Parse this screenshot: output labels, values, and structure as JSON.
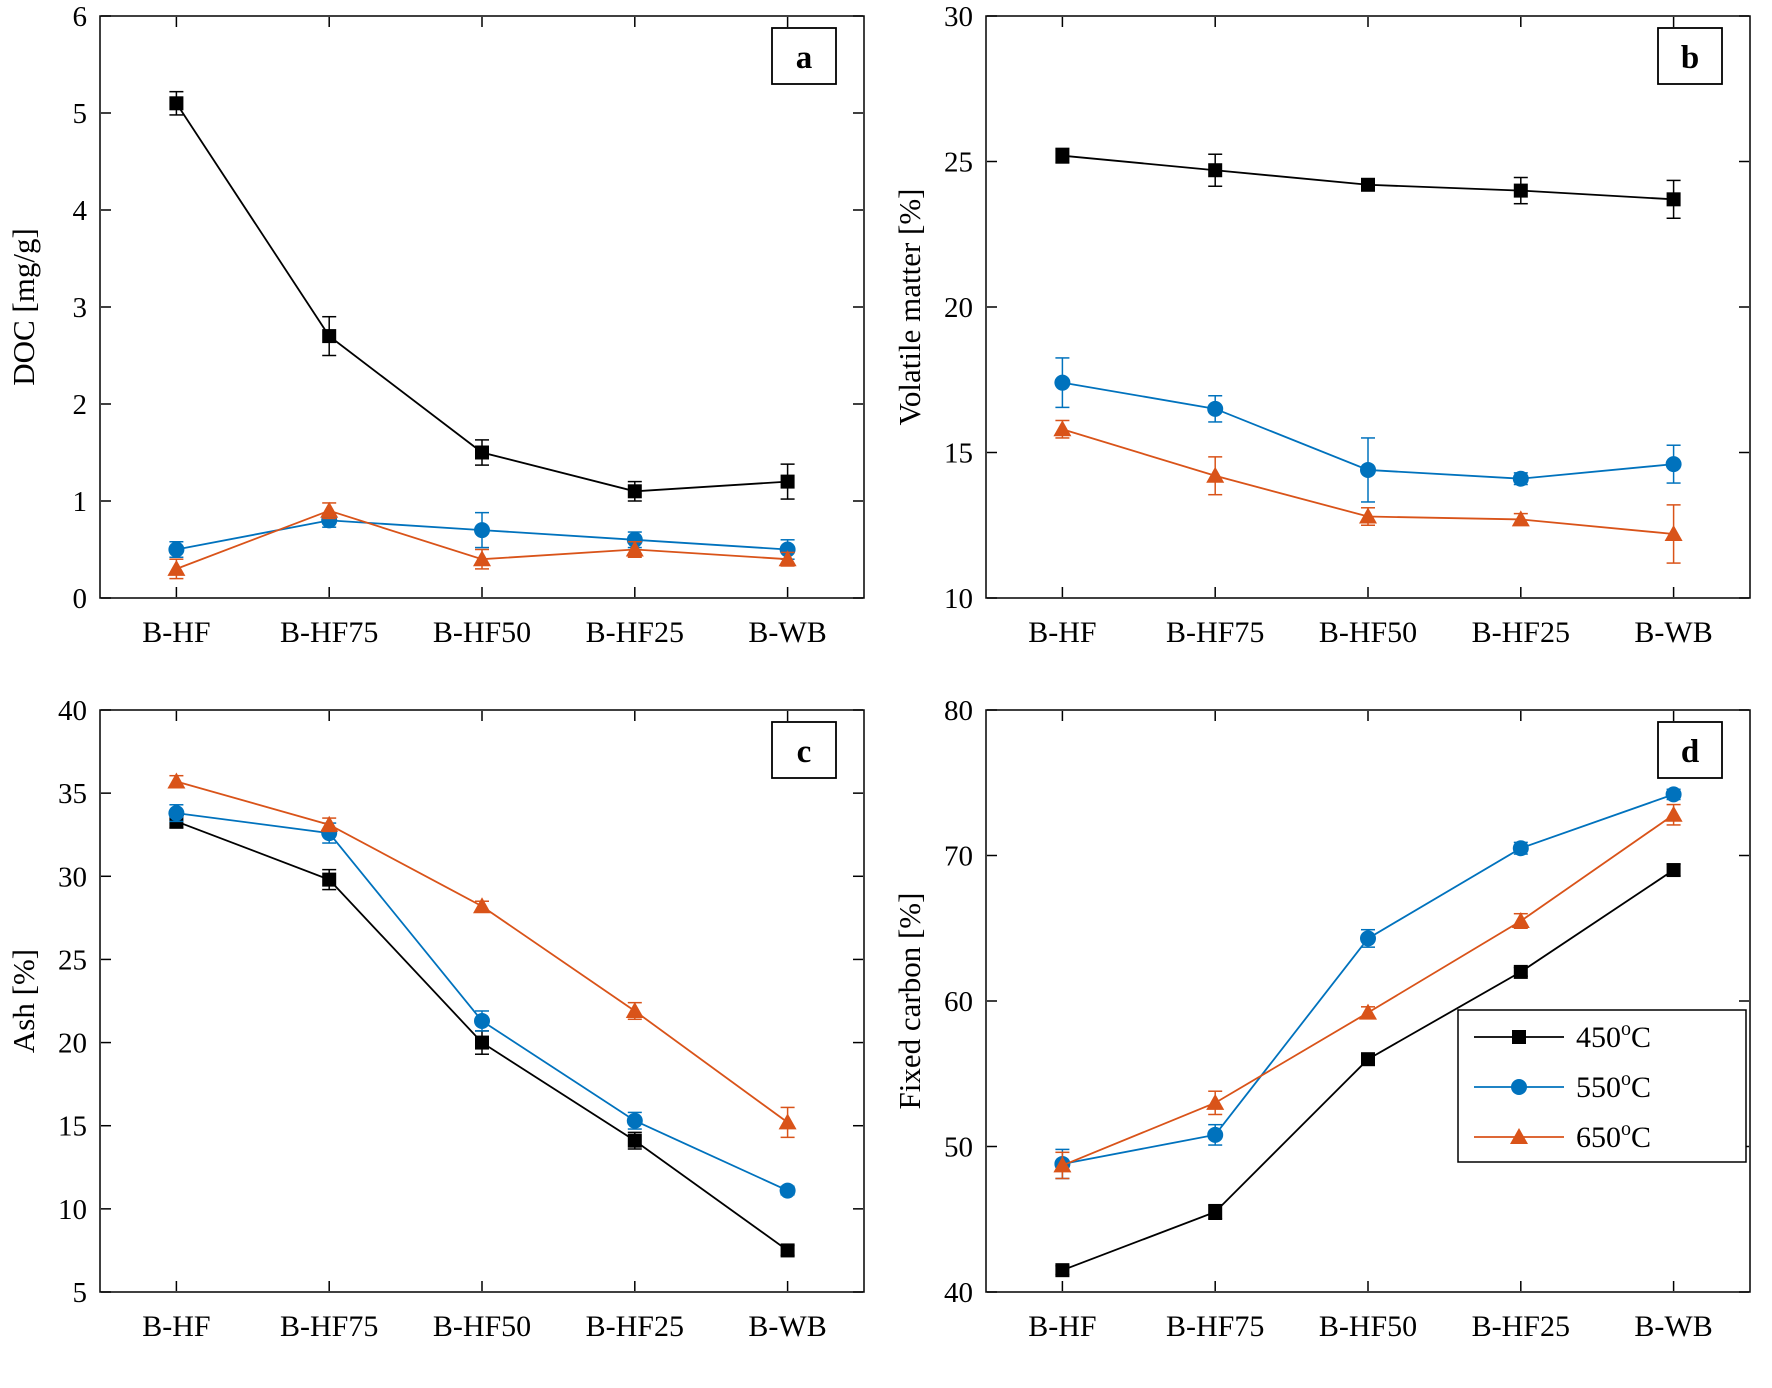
{
  "figure": {
    "background": "#ffffff",
    "panels": [
      "a",
      "b",
      "c",
      "d"
    ]
  },
  "legend": {
    "position": "inside-right-panel-d",
    "entries": [
      {
        "base": "450",
        "sup": "o",
        "suffix": "C"
      },
      {
        "base": "550",
        "sup": "o",
        "suffix": "C"
      },
      {
        "base": "650",
        "sup": "o",
        "suffix": "C"
      }
    ]
  },
  "chart_data": [
    {
      "panel": "a",
      "type": "line",
      "ylabel": "DOC [mg/g]",
      "ylim": [
        0,
        6
      ],
      "yticks": [
        0,
        1,
        2,
        3,
        4,
        5,
        6
      ],
      "categories": [
        "B-HF",
        "B-HF75",
        "B-HF50",
        "B-HF25",
        "B-WB"
      ],
      "legend": false,
      "series": [
        {
          "name": "450°C",
          "marker": "square",
          "color": "#000000",
          "values": [
            5.1,
            2.7,
            1.5,
            1.1,
            1.2
          ],
          "errors": [
            0.12,
            0.2,
            0.13,
            0.1,
            0.18
          ]
        },
        {
          "name": "550°C",
          "marker": "circle",
          "color": "#0072BD",
          "values": [
            0.5,
            0.8,
            0.7,
            0.6,
            0.5
          ],
          "errors": [
            0.08,
            0.07,
            0.18,
            0.08,
            0.1
          ]
        },
        {
          "name": "650°C",
          "marker": "triangle",
          "color": "#D95319",
          "values": [
            0.3,
            0.9,
            0.4,
            0.5,
            0.4
          ],
          "errors": [
            0.1,
            0.08,
            0.1,
            0.08,
            0.07
          ]
        }
      ]
    },
    {
      "panel": "b",
      "type": "line",
      "ylabel": "Volatile matter [%]",
      "ylim": [
        10,
        30
      ],
      "yticks": [
        10,
        15,
        20,
        25,
        30
      ],
      "categories": [
        "B-HF",
        "B-HF75",
        "B-HF50",
        "B-HF25",
        "B-WB"
      ],
      "legend": false,
      "series": [
        {
          "name": "450°C",
          "marker": "square",
          "color": "#000000",
          "values": [
            25.2,
            24.7,
            24.2,
            24.0,
            23.7
          ],
          "errors": [
            0.25,
            0.55,
            0.2,
            0.45,
            0.65
          ]
        },
        {
          "name": "550°C",
          "marker": "circle",
          "color": "#0072BD",
          "values": [
            17.4,
            16.5,
            14.4,
            14.1,
            14.6
          ],
          "errors": [
            0.85,
            0.45,
            1.1,
            0.2,
            0.65
          ]
        },
        {
          "name": "650°C",
          "marker": "triangle",
          "color": "#D95319",
          "values": [
            15.8,
            14.2,
            12.8,
            12.7,
            12.2
          ],
          "errors": [
            0.3,
            0.65,
            0.3,
            0.2,
            1.0
          ]
        }
      ]
    },
    {
      "panel": "c",
      "type": "line",
      "ylabel": "Ash [%]",
      "ylim": [
        5,
        40
      ],
      "yticks": [
        5,
        10,
        15,
        20,
        25,
        30,
        35,
        40
      ],
      "categories": [
        "B-HF",
        "B-HF75",
        "B-HF50",
        "B-HF25",
        "B-WB"
      ],
      "legend": false,
      "series": [
        {
          "name": "450°C",
          "marker": "square",
          "color": "#000000",
          "values": [
            33.3,
            29.8,
            20.0,
            14.1,
            7.5
          ],
          "errors": [
            0.4,
            0.6,
            0.7,
            0.5,
            0.3
          ]
        },
        {
          "name": "550°C",
          "marker": "circle",
          "color": "#0072BD",
          "values": [
            33.8,
            32.6,
            21.3,
            15.3,
            11.1
          ],
          "errors": [
            0.5,
            0.6,
            0.6,
            0.5,
            0.25
          ]
        },
        {
          "name": "650°C",
          "marker": "triangle",
          "color": "#D95319",
          "values": [
            35.7,
            33.1,
            28.2,
            21.9,
            15.2
          ],
          "errors": [
            0.35,
            0.4,
            0.3,
            0.5,
            0.9
          ]
        }
      ]
    },
    {
      "panel": "d",
      "type": "line",
      "ylabel": "Fixed carbon [%]",
      "ylim": [
        40,
        80
      ],
      "yticks": [
        40,
        50,
        60,
        70,
        80
      ],
      "categories": [
        "B-HF",
        "B-HF75",
        "B-HF50",
        "B-HF25",
        "B-WB"
      ],
      "legend": true,
      "series": [
        {
          "name": "450°C",
          "marker": "square",
          "color": "#000000",
          "values": [
            41.5,
            45.5,
            56.0,
            62.0,
            69.0
          ],
          "errors": [
            0.3,
            0.5,
            0.4,
            0.3,
            0.4
          ]
        },
        {
          "name": "550°C",
          "marker": "circle",
          "color": "#0072BD",
          "values": [
            48.8,
            50.8,
            64.3,
            70.5,
            74.2
          ],
          "errors": [
            1.0,
            0.7,
            0.6,
            0.4,
            0.35
          ]
        },
        {
          "name": "650°C",
          "marker": "triangle",
          "color": "#D95319",
          "values": [
            48.7,
            53.0,
            59.2,
            65.5,
            72.8
          ],
          "errors": [
            0.9,
            0.8,
            0.4,
            0.5,
            0.7
          ]
        }
      ]
    }
  ]
}
